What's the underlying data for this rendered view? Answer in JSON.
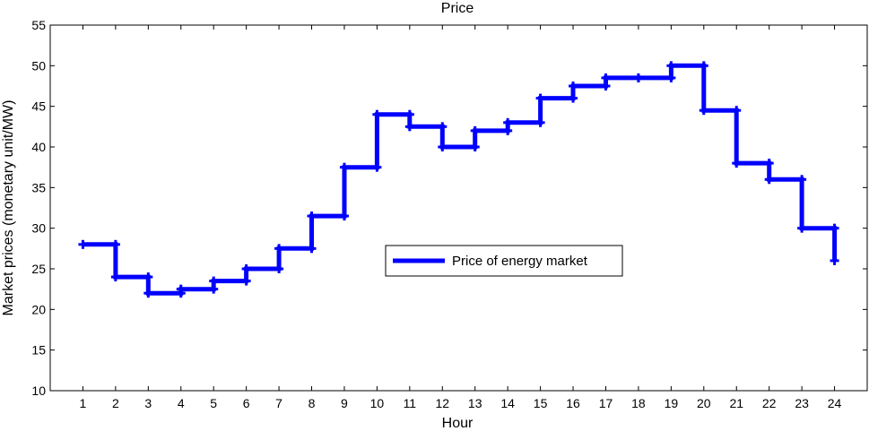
{
  "chart_data": {
    "type": "line",
    "title": "Price",
    "xlabel": "Hour",
    "ylabel": "Market prices (monetary unit/MW)",
    "xlim": [
      0,
      25
    ],
    "ylim": [
      10,
      55
    ],
    "xticks": [
      1,
      2,
      3,
      4,
      5,
      6,
      7,
      8,
      9,
      10,
      11,
      12,
      13,
      14,
      15,
      16,
      17,
      18,
      19,
      20,
      21,
      22,
      23,
      24
    ],
    "yticks": [
      10,
      15,
      20,
      25,
      30,
      35,
      40,
      45,
      50,
      55
    ],
    "grid": false,
    "legend_position": "center",
    "step": "post",
    "series": [
      {
        "name": "Price of energy market",
        "color": "#0000ff",
        "marker": "plus",
        "x": [
          1,
          2,
          3,
          4,
          5,
          6,
          7,
          8,
          9,
          10,
          11,
          12,
          13,
          14,
          15,
          16,
          17,
          18,
          19,
          20,
          21,
          22,
          23,
          24
        ],
        "y": [
          28,
          24,
          22,
          22.5,
          23.5,
          25,
          27.5,
          31.5,
          37.5,
          44,
          42.5,
          40,
          42,
          43,
          46,
          47.5,
          48.5,
          48.5,
          50,
          44.5,
          38,
          36,
          30,
          26
        ]
      }
    ]
  }
}
